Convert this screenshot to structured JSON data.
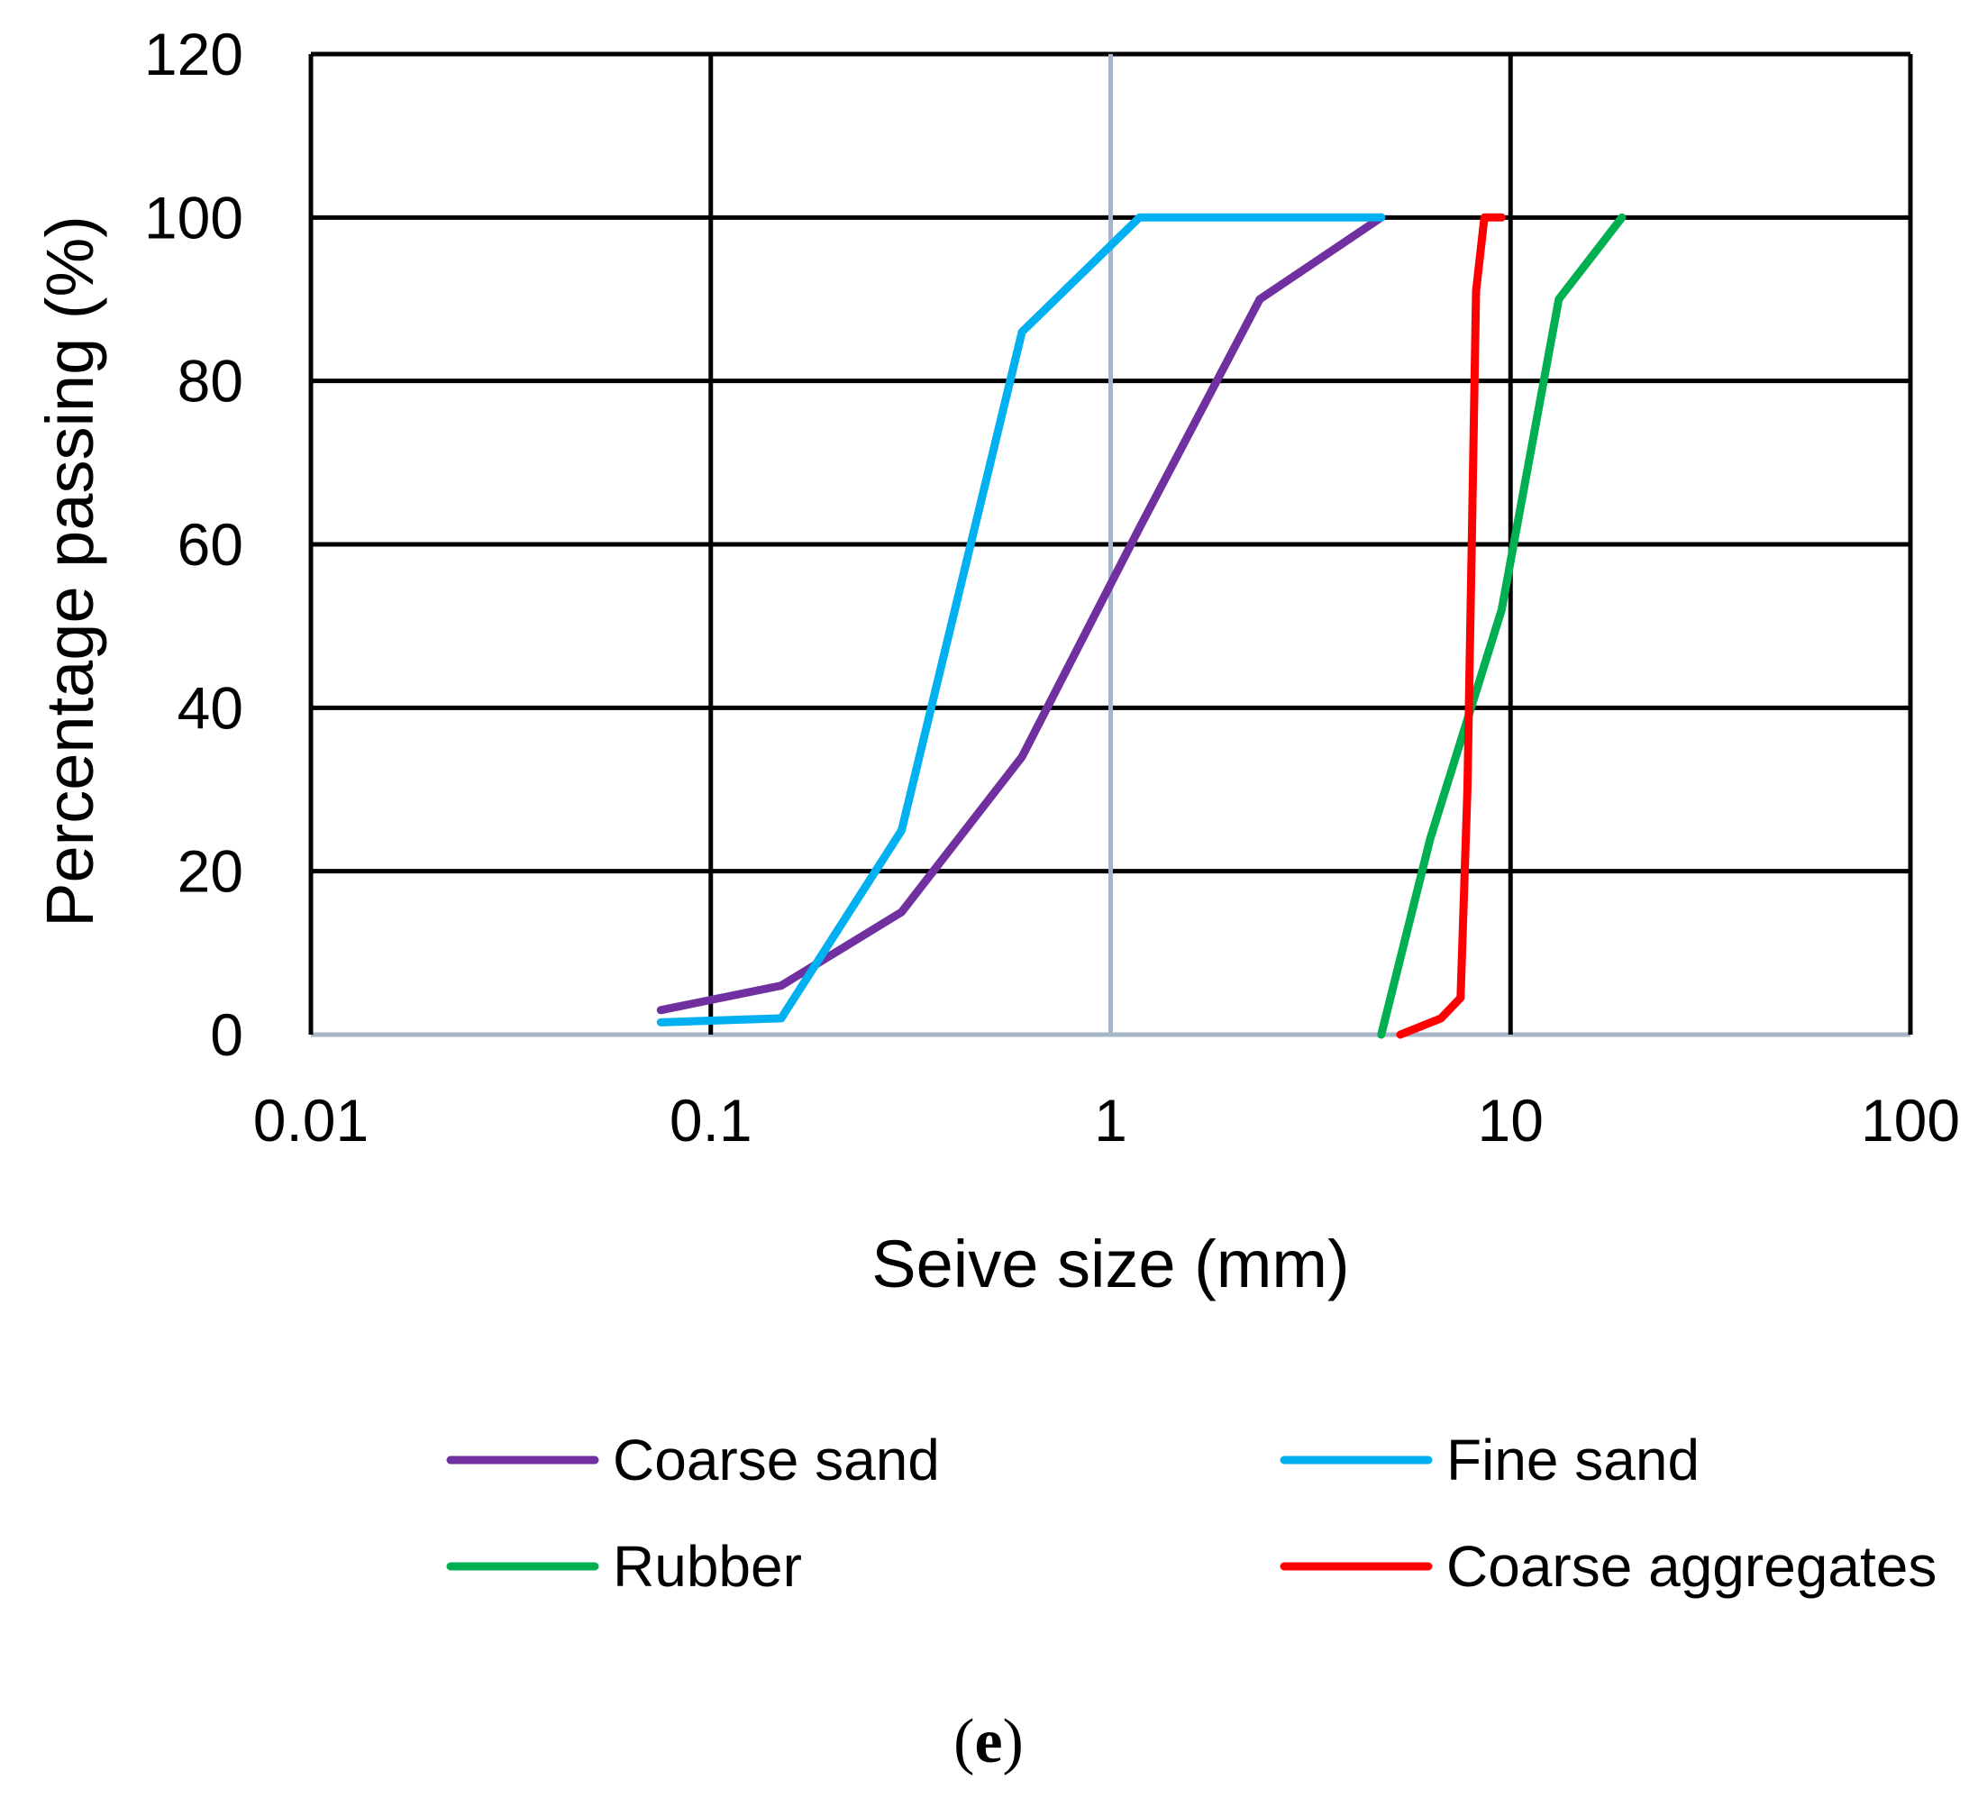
{
  "chart_data": {
    "type": "line",
    "x_scale": "log",
    "xlabel": "Seive size (mm)",
    "ylabel": "Percentage passing (%)",
    "xlim": [
      0.01,
      100
    ],
    "ylim": [
      0,
      120
    ],
    "x_ticks": [
      0.01,
      0.1,
      1,
      10,
      100
    ],
    "x_tick_labels": [
      "0.01",
      "0.1",
      "1",
      "10",
      "100"
    ],
    "y_ticks": [
      0,
      20,
      40,
      60,
      80,
      100,
      120
    ],
    "y_tick_labels": [
      "0",
      "20",
      "40",
      "60",
      "80",
      "100",
      "120"
    ],
    "grid": true,
    "legend_position": "bottom",
    "series": [
      {
        "name": "Coarse sand",
        "color": "#7030A0",
        "points": [
          [
            0.075,
            3
          ],
          [
            0.15,
            6
          ],
          [
            0.3,
            15
          ],
          [
            0.6,
            34
          ],
          [
            1.18,
            62
          ],
          [
            2.36,
            90
          ],
          [
            4.75,
            100
          ]
        ]
      },
      {
        "name": "Fine sand",
        "color": "#00B0F0",
        "points": [
          [
            0.075,
            1.5
          ],
          [
            0.15,
            2
          ],
          [
            0.3,
            25
          ],
          [
            0.6,
            86
          ],
          [
            1.18,
            100
          ],
          [
            2.36,
            100
          ],
          [
            4.75,
            100
          ]
        ]
      },
      {
        "name": "Rubber",
        "color": "#00B050",
        "points": [
          [
            4.75,
            0
          ],
          [
            6.3,
            24
          ],
          [
            9.5,
            52
          ],
          [
            13.2,
            90
          ],
          [
            19,
            100
          ]
        ]
      },
      {
        "name": "Coarse aggregates",
        "color": "#FF0000",
        "points": [
          [
            5.3,
            0
          ],
          [
            6.7,
            2
          ],
          [
            7.5,
            4.5
          ],
          [
            7.8,
            30
          ],
          [
            8.0,
            60
          ],
          [
            8.2,
            91
          ],
          [
            8.6,
            100
          ],
          [
            9.5,
            100
          ]
        ]
      }
    ]
  },
  "panel_label": {
    "open": "(",
    "letter": "e",
    "close": ")"
  }
}
